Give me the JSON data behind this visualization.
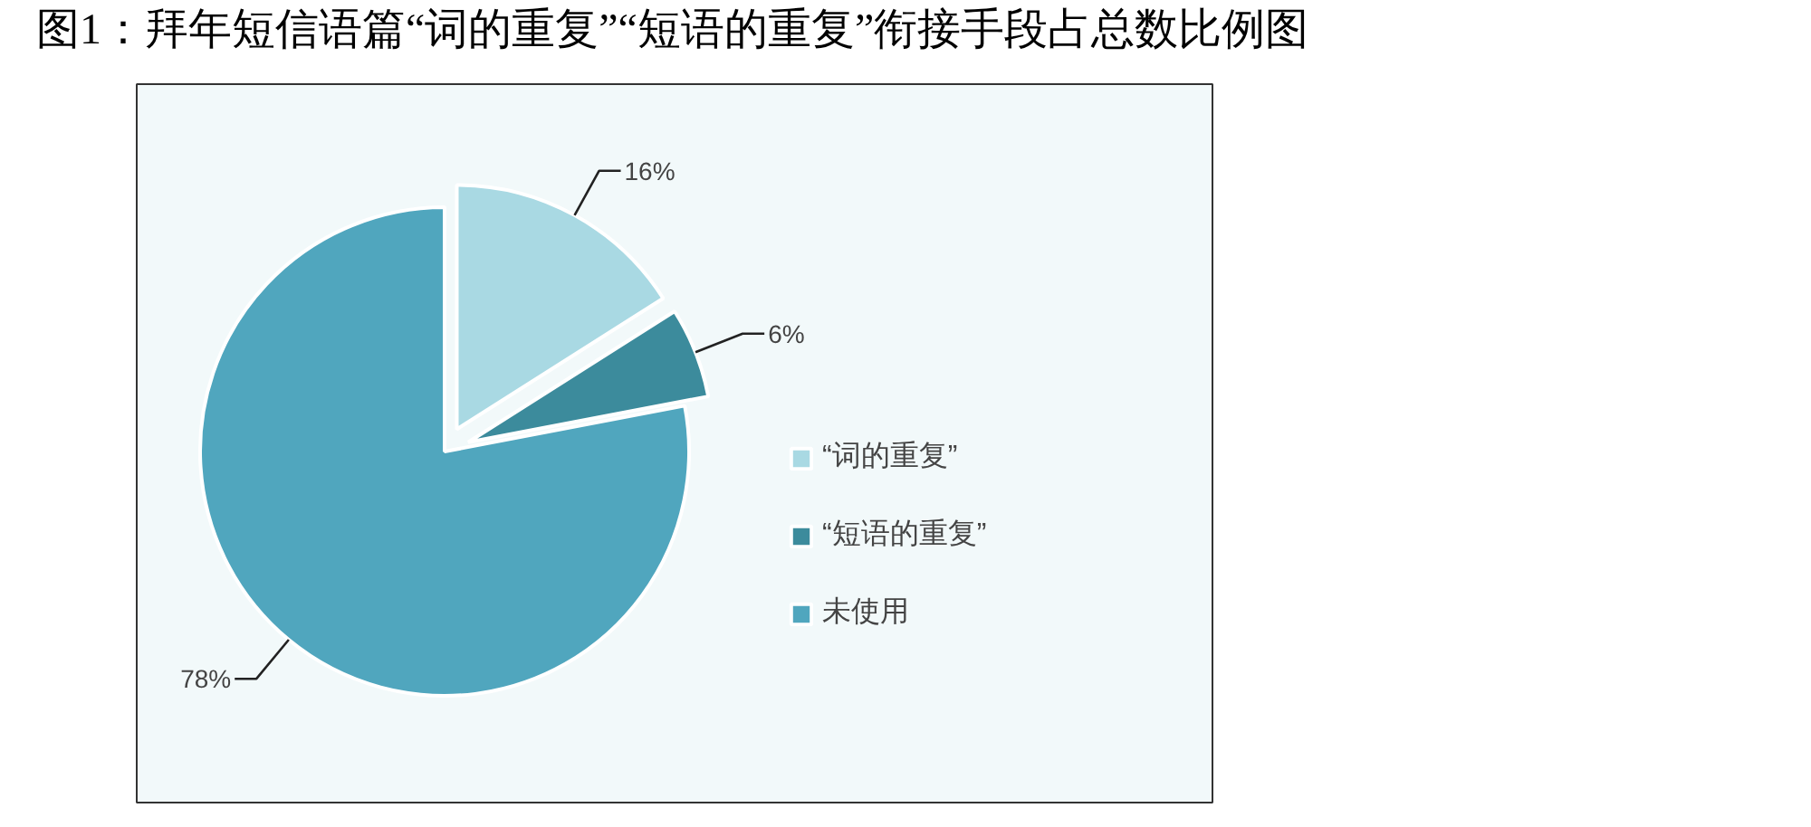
{
  "chart_data": {
    "type": "pie",
    "title": "图1：拜年短信语篇“词的重复”“短语的重复”衔接手段占总数比例图",
    "categories": [
      "“词的重复”",
      "“短语的重复”",
      "未使用"
    ],
    "values": [
      16,
      6,
      78
    ],
    "colors": [
      "#a9d9e3",
      "#3c8b9c",
      "#50a6be"
    ],
    "value_labels": [
      "16%",
      "6%",
      "78%"
    ],
    "legend": "right"
  }
}
